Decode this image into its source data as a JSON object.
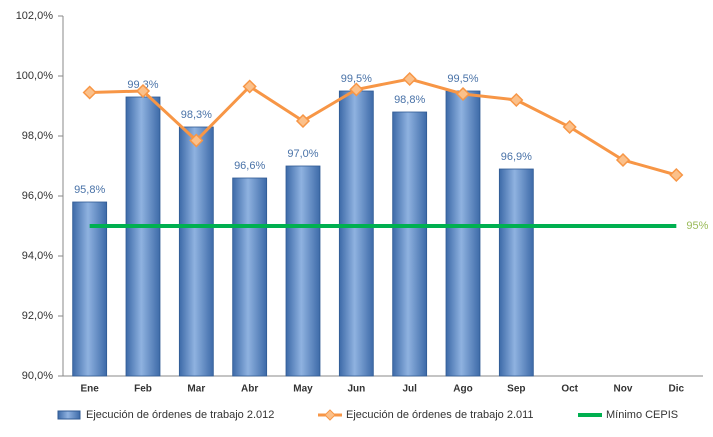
{
  "chart_data": {
    "type": "bar",
    "categories": [
      "Ene",
      "Feb",
      "Mar",
      "Abr",
      "May",
      "Jun",
      "Jul",
      "Ago",
      "Sep",
      "Oct",
      "Nov",
      "Dic"
    ],
    "series": [
      {
        "name": "Ejecución de órdenes de trabajo 2.012",
        "type": "bar",
        "color": "#4f81bd",
        "values": [
          95.8,
          99.3,
          98.3,
          96.6,
          97.0,
          99.5,
          98.8,
          99.5,
          96.9,
          null,
          null,
          null
        ],
        "value_labels": [
          "95,8%",
          "99,3%",
          "98,3%",
          "96,6%",
          "97,0%",
          "99,5%",
          "98,8%",
          "99,5%",
          "96,9%",
          null,
          null,
          null
        ]
      },
      {
        "name": "Ejecución de órdenes de trabajo 2.011",
        "type": "line",
        "color": "#f79646",
        "values": [
          99.45,
          99.5,
          97.85,
          99.65,
          98.5,
          99.55,
          99.9,
          99.4,
          99.2,
          98.3,
          97.2,
          96.7
        ]
      },
      {
        "name": "Mínimo CEPIS",
        "type": "line",
        "color": "#00b050",
        "values": [
          95,
          95,
          95,
          95,
          95,
          95,
          95,
          95,
          95,
          95,
          95,
          95
        ],
        "value_labels": [
          null,
          null,
          null,
          null,
          null,
          null,
          null,
          null,
          null,
          null,
          null,
          "95%"
        ]
      }
    ],
    "ylim": [
      90,
      102
    ],
    "yticks": [
      {
        "value": 90,
        "label": "90,0%"
      },
      {
        "value": 92,
        "label": "92,0%"
      },
      {
        "value": 94,
        "label": "94,0%"
      },
      {
        "value": 96,
        "label": "96,0%"
      },
      {
        "value": 98,
        "label": "98,0%"
      },
      {
        "value": 100,
        "label": "100,0%"
      },
      {
        "value": 102,
        "label": "102,0%"
      }
    ],
    "legend": "bottom"
  }
}
